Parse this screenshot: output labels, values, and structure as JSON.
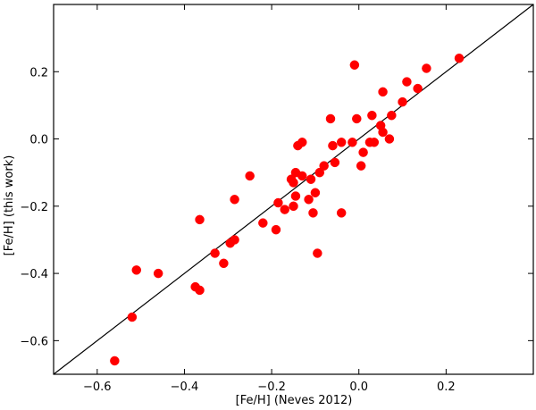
{
  "chart_data": {
    "type": "scatter",
    "xlabel": "[Fe/H] (Neves 2012)",
    "ylabel": "[Fe/H] (this work)",
    "xlim": [
      -0.7,
      0.4
    ],
    "ylim": [
      -0.7,
      0.4
    ],
    "xticks": [
      -0.6,
      -0.4,
      -0.2,
      0.0,
      0.2
    ],
    "yticks": [
      -0.6,
      -0.4,
      -0.2,
      0.0,
      0.2
    ],
    "xtick_labels": [
      "−0.6",
      "−0.4",
      "−0.2",
      "0.0",
      "0.2"
    ],
    "ytick_labels": [
      "−0.6",
      "−0.4",
      "−0.2",
      "0.0",
      "0.2"
    ],
    "reference_line": "y = x",
    "grid": false,
    "legend": "none",
    "marker_color": "#ff0000",
    "line_color": "#000000",
    "points": [
      {
        "x": -0.56,
        "y": -0.66
      },
      {
        "x": -0.52,
        "y": -0.53
      },
      {
        "x": -0.51,
        "y": -0.39
      },
      {
        "x": -0.46,
        "y": -0.4
      },
      {
        "x": -0.375,
        "y": -0.44
      },
      {
        "x": -0.365,
        "y": -0.45
      },
      {
        "x": -0.365,
        "y": -0.24
      },
      {
        "x": -0.33,
        "y": -0.34
      },
      {
        "x": -0.31,
        "y": -0.37
      },
      {
        "x": -0.295,
        "y": -0.31
      },
      {
        "x": -0.285,
        "y": -0.3
      },
      {
        "x": -0.285,
        "y": -0.18
      },
      {
        "x": -0.25,
        "y": -0.11
      },
      {
        "x": -0.22,
        "y": -0.25
      },
      {
        "x": -0.19,
        "y": -0.27
      },
      {
        "x": -0.185,
        "y": -0.19
      },
      {
        "x": -0.17,
        "y": -0.21
      },
      {
        "x": -0.155,
        "y": -0.12
      },
      {
        "x": -0.15,
        "y": -0.2
      },
      {
        "x": -0.15,
        "y": -0.13
      },
      {
        "x": -0.145,
        "y": -0.17
      },
      {
        "x": -0.145,
        "y": -0.1
      },
      {
        "x": -0.14,
        "y": -0.02
      },
      {
        "x": -0.13,
        "y": -0.11
      },
      {
        "x": -0.13,
        "y": -0.01
      },
      {
        "x": -0.115,
        "y": -0.18
      },
      {
        "x": -0.11,
        "y": -0.12
      },
      {
        "x": -0.105,
        "y": -0.22
      },
      {
        "x": -0.1,
        "y": -0.16
      },
      {
        "x": -0.095,
        "y": -0.34
      },
      {
        "x": -0.09,
        "y": -0.1
      },
      {
        "x": -0.08,
        "y": -0.08
      },
      {
        "x": -0.065,
        "y": 0.06
      },
      {
        "x": -0.06,
        "y": -0.02
      },
      {
        "x": -0.055,
        "y": -0.07
      },
      {
        "x": -0.04,
        "y": -0.22
      },
      {
        "x": -0.04,
        "y": -0.01
      },
      {
        "x": -0.015,
        "y": -0.01
      },
      {
        "x": -0.01,
        "y": 0.22
      },
      {
        "x": -0.005,
        "y": 0.06
      },
      {
        "x": 0.005,
        "y": -0.08
      },
      {
        "x": 0.01,
        "y": -0.04
      },
      {
        "x": 0.025,
        "y": -0.01
      },
      {
        "x": 0.03,
        "y": 0.07
      },
      {
        "x": 0.035,
        "y": -0.01
      },
      {
        "x": 0.05,
        "y": 0.04
      },
      {
        "x": 0.055,
        "y": 0.14
      },
      {
        "x": 0.055,
        "y": 0.02
      },
      {
        "x": 0.07,
        "y": 0.0
      },
      {
        "x": 0.075,
        "y": 0.07
      },
      {
        "x": 0.1,
        "y": 0.11
      },
      {
        "x": 0.11,
        "y": 0.17
      },
      {
        "x": 0.135,
        "y": 0.15
      },
      {
        "x": 0.155,
        "y": 0.21
      },
      {
        "x": 0.23,
        "y": 0.24
      }
    ]
  }
}
